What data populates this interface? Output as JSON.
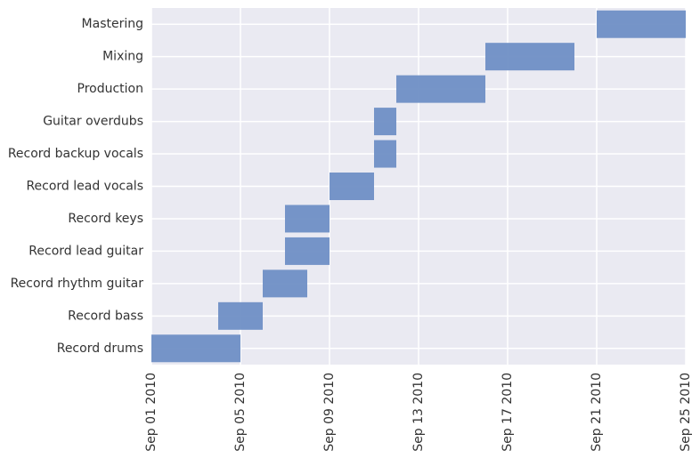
{
  "chart_data": {
    "type": "bar",
    "orientation": "horizontal",
    "title": "",
    "xlabel": "",
    "ylabel": "",
    "xlim": [
      "2010-09-01",
      "2010-09-25"
    ],
    "x_ticks": [
      "Sep 01 2010",
      "Sep 05 2010",
      "Sep 09 2010",
      "Sep 13 2010",
      "Sep 17 2010",
      "Sep 21 2010",
      "Sep 25 2010"
    ],
    "x_tick_dates": [
      "2010-09-01",
      "2010-09-05",
      "2010-09-09",
      "2010-09-13",
      "2010-09-17",
      "2010-09-21",
      "2010-09-25"
    ],
    "grid": true,
    "colors": {
      "bar": "#6f8fc5",
      "background": "#eaeaf2",
      "grid": "#ffffff",
      "text": "#333333"
    },
    "tasks": [
      {
        "name": "Record drums",
        "start": "2010-09-01",
        "end": "2010-09-05"
      },
      {
        "name": "Record bass",
        "start": "2010-09-04",
        "end": "2010-09-06"
      },
      {
        "name": "Record rhythm guitar",
        "start": "2010-09-06",
        "end": "2010-09-08"
      },
      {
        "name": "Record lead guitar",
        "start": "2010-09-07",
        "end": "2010-09-09"
      },
      {
        "name": "Record keys",
        "start": "2010-09-07",
        "end": "2010-09-09"
      },
      {
        "name": "Record lead vocals",
        "start": "2010-09-09",
        "end": "2010-09-11"
      },
      {
        "name": "Record backup vocals",
        "start": "2010-09-11",
        "end": "2010-09-12"
      },
      {
        "name": "Guitar overdubs",
        "start": "2010-09-11",
        "end": "2010-09-12"
      },
      {
        "name": "Production",
        "start": "2010-09-12",
        "end": "2010-09-16"
      },
      {
        "name": "Mixing",
        "start": "2010-09-16",
        "end": "2010-09-20"
      },
      {
        "name": "Mastering",
        "start": "2010-09-21",
        "end": "2010-09-25"
      }
    ]
  }
}
